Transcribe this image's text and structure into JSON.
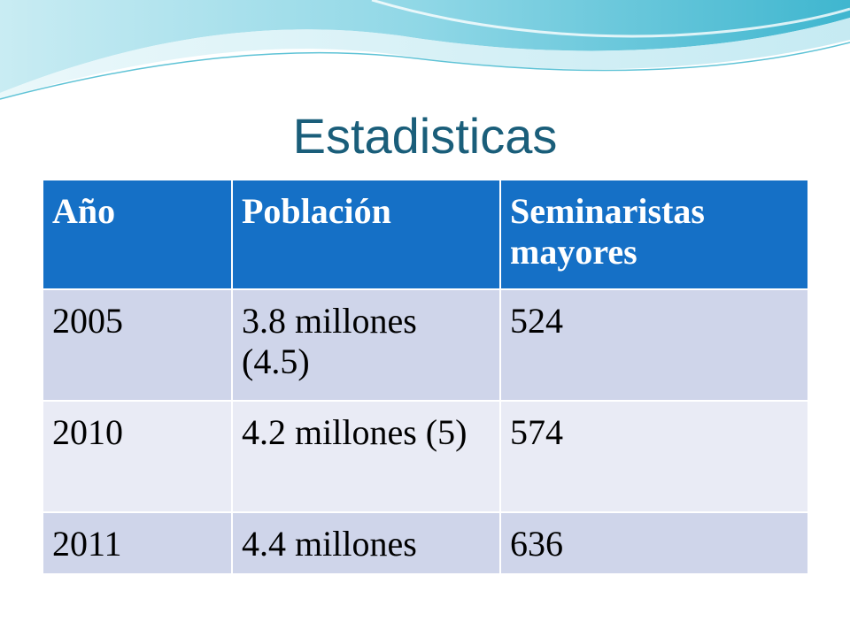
{
  "slide": {
    "title": "Estadisticas"
  },
  "table": {
    "headers": [
      "Año",
      "Población",
      "Seminaristas mayores"
    ],
    "rows": [
      [
        "2005",
        "3.8 millones (4.5)",
        "524"
      ],
      [
        "2010",
        "4.2 millones (5)",
        "574"
      ],
      [
        "2011",
        "4.4 millones",
        "636"
      ]
    ]
  },
  "colors": {
    "title": "#1a5e7a",
    "header_bg": "#1570c6",
    "row_dark": "#cfd5ea",
    "row_light": "#e9ebf5",
    "wave_accent": "#5fc3d6"
  }
}
